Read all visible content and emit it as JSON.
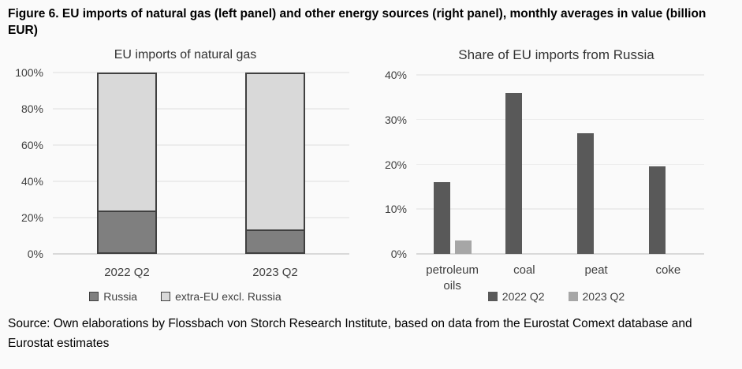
{
  "figure_title": "Figure 6. EU imports of natural gas (left panel) and other energy sources (right panel), monthly averages in value (billion EUR)",
  "source": "Source: Own elaborations by Flossbach von Storch Research Institute, based on data from the Eurostat Comext database and Eurostat estimates",
  "colors": {
    "background": "#fafafa",
    "gridline": "#ececec",
    "axis_line": "#d9d9d9",
    "bar_border": "#404040",
    "russia_fill": "#7f7f7f",
    "extra_eu_fill": "#d9d9d9",
    "q2_2022_fill": "#595959",
    "q2_2023_fill": "#a6a6a6",
    "text_dark": "#404040"
  },
  "chart_data": [
    {
      "type": "bar",
      "subtype": "stacked",
      "title": "EU imports of natural gas",
      "categories": [
        "2022 Q2",
        "2023 Q2"
      ],
      "series": [
        {
          "name": "Russia",
          "values": [
            24,
            13.5
          ],
          "color": "#7f7f7f",
          "border": "#404040"
        },
        {
          "name": "extra-EU excl. Russia",
          "values": [
            76,
            86.5
          ],
          "color": "#d9d9d9",
          "border": "#404040"
        }
      ],
      "ylim": [
        0,
        100
      ],
      "ystep": 20,
      "ytick_labels": [
        "0%",
        "20%",
        "40%",
        "60%",
        "80%",
        "100%"
      ],
      "grid": true,
      "legend_position": "bottom"
    },
    {
      "type": "bar",
      "subtype": "grouped",
      "title": "Share of EU imports from Russia",
      "categories": [
        "petroleum oils",
        "coal",
        "peat",
        "coke"
      ],
      "series": [
        {
          "name": "2022 Q2",
          "values": [
            16,
            36,
            27,
            19.5
          ],
          "color": "#595959",
          "border": null
        },
        {
          "name": "2023 Q2",
          "values": [
            3,
            0,
            0,
            0
          ],
          "color": "#a6a6a6",
          "border": null
        }
      ],
      "ylim": [
        0,
        40
      ],
      "ystep": 10,
      "ytick_labels": [
        "0%",
        "10%",
        "20%",
        "30%",
        "40%"
      ],
      "grid": true,
      "legend_position": "bottom"
    }
  ]
}
